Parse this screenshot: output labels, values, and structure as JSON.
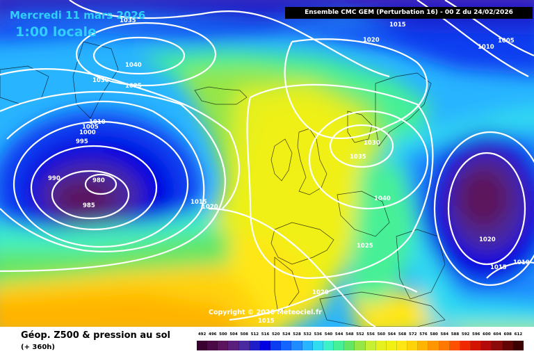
{
  "header": {
    "date": "Mercredi 11 mars 2026",
    "time": "1:00 locale",
    "model_info": "Ensemble CMC GEM  (Perturbation 16)  -  00 Z du 24/02/2026"
  },
  "map": {
    "copyright": "Copyright © 2026 Meteociel.fr",
    "isobar_labels": [
      "1035",
      "1040",
      "1030",
      "1025",
      "1010",
      "1005",
      "1000",
      "995",
      "990",
      "980",
      "985",
      "1015",
      "1020",
      "1015",
      "1020",
      "1010",
      "1005",
      "1035",
      "1030",
      "1040",
      "1025",
      "1020",
      "1020",
      "1015",
      "1010",
      "1015"
    ]
  },
  "legend": {
    "title": "Géop. Z500 & pression au sol",
    "lead_time": "(+ 360h)",
    "scale_values": [
      "492",
      "496",
      "500",
      "504",
      "508",
      "512",
      "516",
      "520",
      "524",
      "528",
      "532",
      "536",
      "540",
      "544",
      "548",
      "552",
      "556",
      "560",
      "564",
      "568",
      "572",
      "576",
      "580",
      "584",
      "588",
      "592",
      "596",
      "600",
      "604",
      "608",
      "612"
    ],
    "scale_colors": [
      "#3a0030",
      "#4b0a46",
      "#5c145c",
      "#5a1f7a",
      "#4a2aa0",
      "#1e1ec8",
      "#0000e0",
      "#0a3cf0",
      "#1464ff",
      "#1e8cff",
      "#28b4ff",
      "#32dcf0",
      "#3cf0c8",
      "#46f096",
      "#64e664",
      "#96e646",
      "#c8f032",
      "#e6f01e",
      "#f0f014",
      "#ffe614",
      "#ffd20a",
      "#ffb400",
      "#ff9600",
      "#ff7800",
      "#ff5000",
      "#f02800",
      "#d21400",
      "#b40a0a",
      "#8c0a0a",
      "#640505",
      "#3c0000"
    ]
  }
}
